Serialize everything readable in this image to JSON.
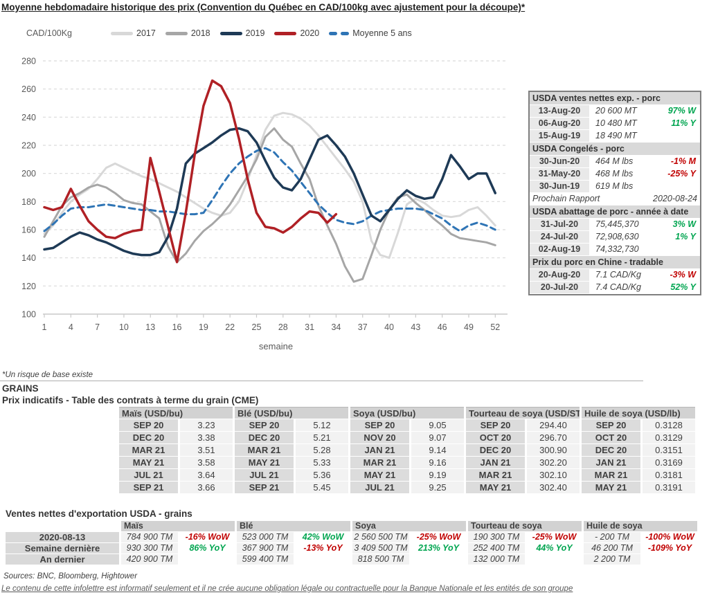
{
  "title": "Moyenne hebdomadaire historique des prix (Convention du Québec en CAD/100kg avec ajustement pour la découpe)*",
  "chart_data": {
    "type": "line",
    "y_axis_label": "CAD/100Kg",
    "xlabel": "semaine",
    "ylim": [
      100,
      280
    ],
    "ytick_step": 20,
    "xticks": [
      1,
      4,
      7,
      10,
      13,
      16,
      19,
      22,
      25,
      28,
      31,
      34,
      37,
      40,
      43,
      46,
      49,
      52
    ],
    "grid": "horizontal-dashed",
    "legend_position": "top",
    "series": [
      {
        "name": "2017",
        "color": "#d8d8d8",
        "dash": false,
        "width": 3,
        "values": [
          157,
          163,
          172,
          180,
          185,
          189,
          196,
          204,
          207,
          204,
          201,
          198,
          196,
          193,
          190,
          187,
          183,
          179,
          175,
          172,
          170,
          172,
          180,
          195,
          213,
          231,
          241,
          243,
          242,
          239,
          234,
          227,
          219,
          211,
          203,
          194,
          180,
          152,
          142,
          140,
          158,
          178,
          182,
          179,
          174,
          170,
          169,
          170,
          174,
          176,
          170,
          163
        ]
      },
      {
        "name": "2018",
        "color": "#a6a6a6",
        "dash": false,
        "width": 3,
        "values": [
          155,
          166,
          177,
          183,
          186,
          190,
          192,
          190,
          186,
          181,
          179,
          178,
          173,
          168,
          148,
          137,
          143,
          152,
          159,
          164,
          170,
          178,
          188,
          198,
          210,
          226,
          232,
          224,
          219,
          207,
          196,
          177,
          163,
          150,
          134,
          123,
          125,
          142,
          160,
          174,
          183,
          185,
          179,
          174,
          168,
          163,
          157,
          154,
          153,
          152,
          151,
          149
        ]
      },
      {
        "name": "Moyenne 5 ans",
        "color": "#2e74b5",
        "dash": true,
        "width": 3,
        "values": [
          159,
          164,
          170,
          175,
          176,
          176,
          177,
          178,
          177,
          176,
          175,
          174,
          174,
          173,
          173,
          172,
          171,
          171,
          172,
          181,
          191,
          200,
          207,
          212,
          216,
          218,
          215,
          208,
          202,
          194,
          186,
          178,
          172,
          167,
          165,
          164,
          166,
          170,
          173,
          174,
          175,
          175,
          175,
          174,
          171,
          168,
          163,
          159,
          163,
          165,
          163,
          160
        ]
      },
      {
        "name": "2019",
        "color": "#1e3a56",
        "dash": false,
        "width": 3.5,
        "values": [
          146,
          147,
          151,
          155,
          158,
          156,
          153,
          151,
          148,
          145,
          143,
          142,
          142,
          144,
          155,
          175,
          207,
          214,
          218,
          222,
          227,
          231,
          232,
          230,
          222,
          209,
          197,
          190,
          188,
          196,
          210,
          224,
          227,
          220,
          212,
          200,
          185,
          170,
          166,
          174,
          182,
          188,
          184,
          182,
          183,
          196,
          213,
          205,
          196,
          200,
          200,
          186
        ]
      },
      {
        "name": "2020",
        "color": "#b02025",
        "dash": false,
        "width": 3.5,
        "values": [
          176,
          174,
          176,
          189,
          177,
          166,
          160,
          155,
          154,
          157,
          159,
          160,
          211,
          187,
          162,
          137,
          172,
          213,
          248,
          266,
          262,
          250,
          225,
          196,
          172,
          162,
          161,
          158,
          162,
          168,
          173,
          172,
          165,
          171
        ]
      }
    ],
    "legend_order": [
      "2017",
      "2018",
      "2019",
      "2020",
      "Moyenne 5 ans"
    ]
  },
  "usda_panel": {
    "blocks": [
      {
        "kind": "header",
        "text": "USDA ventes nettes exp. - porc"
      },
      {
        "kind": "row",
        "date": "13-Aug-20",
        "value": "20 600  MT",
        "pct": "97% W",
        "tone": "pos"
      },
      {
        "kind": "row",
        "date": "06-Aug-20",
        "value": "10 480  MT",
        "pct": "11% Y",
        "tone": "pos"
      },
      {
        "kind": "row",
        "date": "15-Aug-19",
        "value": "18 490  MT",
        "pct": "",
        "tone": ""
      },
      {
        "kind": "header",
        "text": "USDA Congelés - porc"
      },
      {
        "kind": "row",
        "date": "30-Jun-20",
        "value": "464 M lbs",
        "pct": "-1% M",
        "tone": "neg"
      },
      {
        "kind": "row",
        "date": "31-May-20",
        "value": "468 M lbs",
        "pct": "-25% Y",
        "tone": "neg"
      },
      {
        "kind": "row",
        "date": "30-Jun-19",
        "value": "619 M lbs",
        "pct": "",
        "tone": ""
      },
      {
        "kind": "note",
        "label": "Prochain Rapport",
        "value": "2020-08-24"
      },
      {
        "kind": "header",
        "text": "USDA abattage de porc - année à date"
      },
      {
        "kind": "row",
        "date": "31-Jul-20",
        "value": "75,445,370",
        "pct": "3% W",
        "tone": "pos"
      },
      {
        "kind": "row",
        "date": "24-Jul-20",
        "value": "72,908,630",
        "pct": "1% Y",
        "tone": "pos"
      },
      {
        "kind": "row",
        "date": "02-Aug-19",
        "value": "74,332,730",
        "pct": "",
        "tone": ""
      },
      {
        "kind": "header",
        "text": "Prix du porc en Chine - tradable"
      },
      {
        "kind": "row",
        "date": "20-Aug-20",
        "value": "7.1 CAD/Kg",
        "pct": "-3% W",
        "tone": "neg"
      },
      {
        "kind": "row",
        "date": "20-Jul-20",
        "value": "7.4 CAD/Kg",
        "pct": "52% Y",
        "tone": "pos"
      }
    ]
  },
  "grains": {
    "footnote": "*Un risque de base existe",
    "section_title": "GRAINS",
    "table_title": "Prix indicatifs - Table des contrats à terme du grain (CME)",
    "cme_groups": [
      {
        "header": "Maïs (USD/bu)",
        "rows": [
          [
            "SEP 20",
            "3.23"
          ],
          [
            "DEC 20",
            "3.38"
          ],
          [
            "MAR 21",
            "3.51"
          ],
          [
            "MAY 21",
            "3.58"
          ],
          [
            "JUL 21",
            "3.64"
          ],
          [
            "SEP 21",
            "3.66"
          ]
        ]
      },
      {
        "header": "Blé (USD/bu)",
        "rows": [
          [
            "SEP 20",
            "5.12"
          ],
          [
            "DEC 20",
            "5.21"
          ],
          [
            "MAR 21",
            "5.28"
          ],
          [
            "MAY 21",
            "5.33"
          ],
          [
            "JUL 21",
            "5.36"
          ],
          [
            "SEP 21",
            "5.45"
          ]
        ]
      },
      {
        "header": "Soya (USD/bu)",
        "rows": [
          [
            "SEP 20",
            "9.05"
          ],
          [
            "NOV 20",
            "9.07"
          ],
          [
            "JAN 21",
            "9.14"
          ],
          [
            "MAR 21",
            "9.16"
          ],
          [
            "MAY 21",
            "9.19"
          ],
          [
            "JUL 21",
            "9.25"
          ]
        ]
      },
      {
        "header": "Tourteau de soya (USD/ST)",
        "rows": [
          [
            "SEP 20",
            "294.40"
          ],
          [
            "OCT 20",
            "296.70"
          ],
          [
            "DEC 20",
            "300.90"
          ],
          [
            "JAN 21",
            "302.20"
          ],
          [
            "MAR 21",
            "302.10"
          ],
          [
            "MAY 21",
            "302.40"
          ]
        ]
      },
      {
        "header": "Huile de soya (USD/lb)",
        "rows": [
          [
            "SEP 20",
            "0.3128"
          ],
          [
            "OCT 20",
            "0.3129"
          ],
          [
            "DEC 20",
            "0.3151"
          ],
          [
            "JAN 21",
            "0.3169"
          ],
          [
            "MAR 21",
            "0.3181"
          ],
          [
            "MAY 21",
            "0.3191"
          ]
        ]
      }
    ]
  },
  "exports": {
    "title": "Ventes nettes d'exportation USDA - grains",
    "row_labels": [
      "2020-08-13",
      "Semaine dernière",
      "An dernier"
    ],
    "groups": [
      {
        "header": "Maïs",
        "cells": [
          [
            "784 900 TM",
            "-16% WoW",
            "neg"
          ],
          [
            "930 300 TM",
            "86% YoY",
            "pos"
          ],
          [
            "420 900 TM",
            "",
            ""
          ]
        ]
      },
      {
        "header": "Blé",
        "cells": [
          [
            "523 000 TM",
            "42% WoW",
            "pos"
          ],
          [
            "367 900 TM",
            "-13% YoY",
            "neg"
          ],
          [
            "599 400 TM",
            "",
            ""
          ]
        ]
      },
      {
        "header": "Soya",
        "cells": [
          [
            "2 560 500 TM",
            "-25% WoW",
            "neg"
          ],
          [
            "3 409 500 TM",
            "213% YoY",
            "pos"
          ],
          [
            "818 500 TM",
            "",
            ""
          ]
        ]
      },
      {
        "header": "Tourteau de soya",
        "cells": [
          [
            "190 300 TM",
            "-25% WoW",
            "neg"
          ],
          [
            "252 400 TM",
            "44% YoY",
            "pos"
          ],
          [
            "132 000 TM",
            "",
            ""
          ]
        ]
      },
      {
        "header": "Huile de soya",
        "cells": [
          [
            "-  200 TM",
            "-100% WoW",
            "neg"
          ],
          [
            "46 200 TM",
            "-109% YoY",
            "neg"
          ],
          [
            "2 200 TM",
            "",
            ""
          ]
        ]
      }
    ]
  },
  "sources": "Sources: BNC, Bloomberg, Hightower",
  "disclaimer": "Le contenu de cette infolettre est informatif seulement et il ne crée aucune obligation légale ou contractuelle pour la Banque Nationale et les entités de son groupe",
  "status_colors": {
    "pos": "#00a550",
    "neg": "#c00000"
  }
}
